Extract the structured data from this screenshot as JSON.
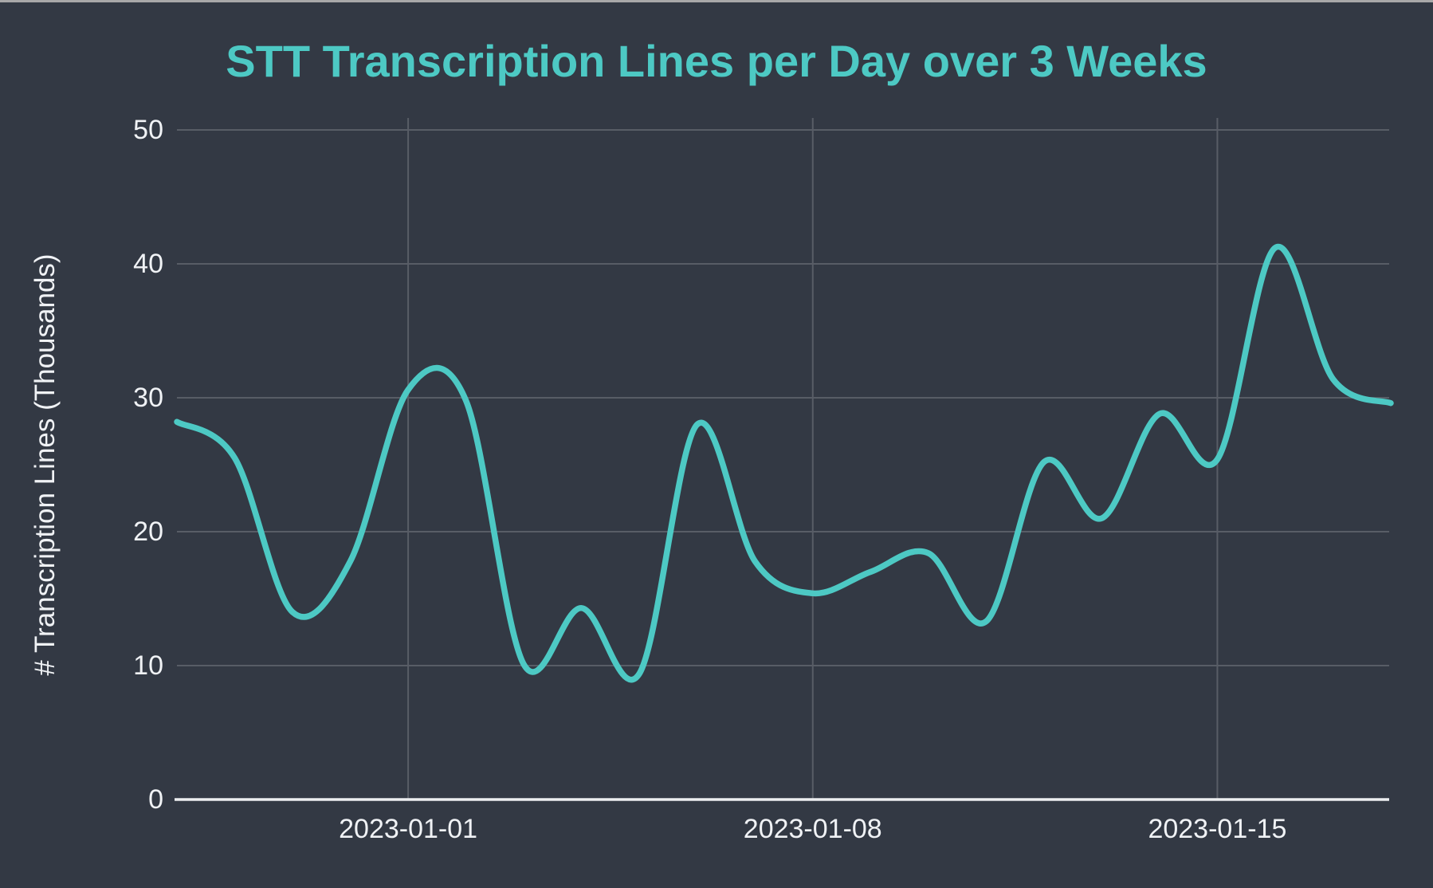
{
  "page": {
    "background_color": "#333944",
    "top_border_color": "#a8a8a8"
  },
  "chart_data": {
    "type": "line",
    "title": "STT Transcription Lines per Day over 3 Weeks",
    "ylabel": "# Transcription Lines (Thousands)",
    "xlabel": "",
    "x": [
      "2022-12-28",
      "2022-12-29",
      "2022-12-30",
      "2022-12-31",
      "2023-01-01",
      "2023-01-02",
      "2023-01-03",
      "2023-01-04",
      "2023-01-05",
      "2023-01-06",
      "2023-01-07",
      "2023-01-08",
      "2023-01-09",
      "2023-01-10",
      "2023-01-11",
      "2023-01-12",
      "2023-01-13",
      "2023-01-14",
      "2023-01-15",
      "2023-01-16",
      "2023-01-17",
      "2023-01-18"
    ],
    "values": [
      28.2,
      25.5,
      14.0,
      17.8,
      30.6,
      29.8,
      10.1,
      14.3,
      9.4,
      28.0,
      17.8,
      15.4,
      17.0,
      18.4,
      13.3,
      25.2,
      21.0,
      28.8,
      25.4,
      41.2,
      31.4,
      29.6
    ],
    "values_unit": "thousands of transcription lines",
    "ylim": [
      0,
      50
    ],
    "y_ticks": [
      0,
      10,
      20,
      30,
      40,
      50
    ],
    "x_tick_labels": [
      "2023-01-01",
      "2023-01-08",
      "2023-01-15"
    ],
    "grid": true,
    "legend": false,
    "line_smoothing": "spline",
    "line_color": "#4DC9C4",
    "title_color": "#4DC9C4",
    "grid_color": "#585D66",
    "axis_line_color": "#ECEEF0",
    "tick_label_color": "#F0F2F5"
  }
}
